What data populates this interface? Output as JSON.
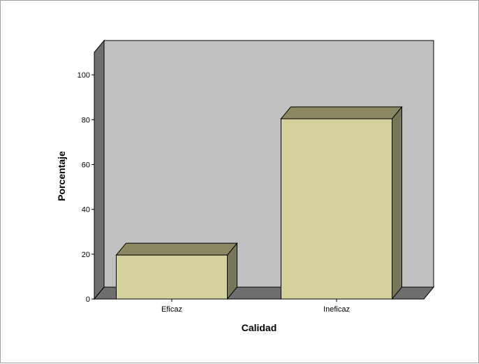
{
  "chart_data": {
    "type": "bar",
    "title": "",
    "xlabel": "Calidad",
    "ylabel": "Porcentaje",
    "categories": [
      "Eficaz",
      "Ineficaz"
    ],
    "values": [
      19.6,
      80.4
    ],
    "ylim": [
      0,
      110
    ],
    "yticks": [
      0,
      20,
      40,
      60,
      80,
      100
    ],
    "grid": false,
    "legend": "none",
    "colors": {
      "bar_front": "#d5d19c",
      "bar_top": "#8a8762",
      "bar_side": "#77755a",
      "wall_back": "#c0c0c0",
      "wall_side": "#6f6f6f",
      "floor": "#6f6f6f"
    }
  }
}
